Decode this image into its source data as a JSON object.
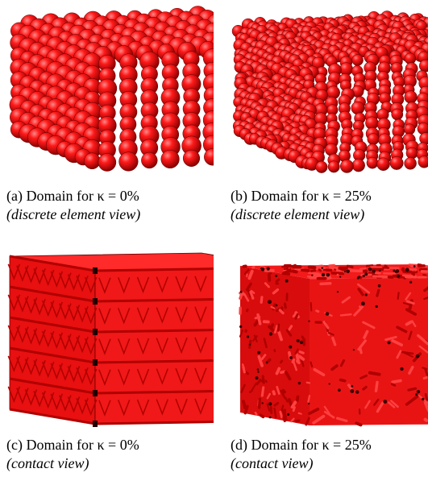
{
  "panels": [
    {
      "id": "a",
      "caption": "(a) Domain for",
      "kappa": "κ = 0%",
      "subcaption": "(discrete element view)"
    },
    {
      "id": "b",
      "caption": "(b) Domain for",
      "kappa": "κ = 25%",
      "subcaption": "(discrete element view)"
    },
    {
      "id": "c",
      "caption": "(c) Domain for",
      "kappa": "κ = 0%",
      "subcaption": "(contact view)"
    },
    {
      "id": "d",
      "caption": "(d) Domain for",
      "kappa": "κ = 25%",
      "subcaption": "(contact view)"
    }
  ],
  "colors": {
    "element": "#ff1a1a",
    "shade": "#b00000",
    "edge": "#600000"
  }
}
